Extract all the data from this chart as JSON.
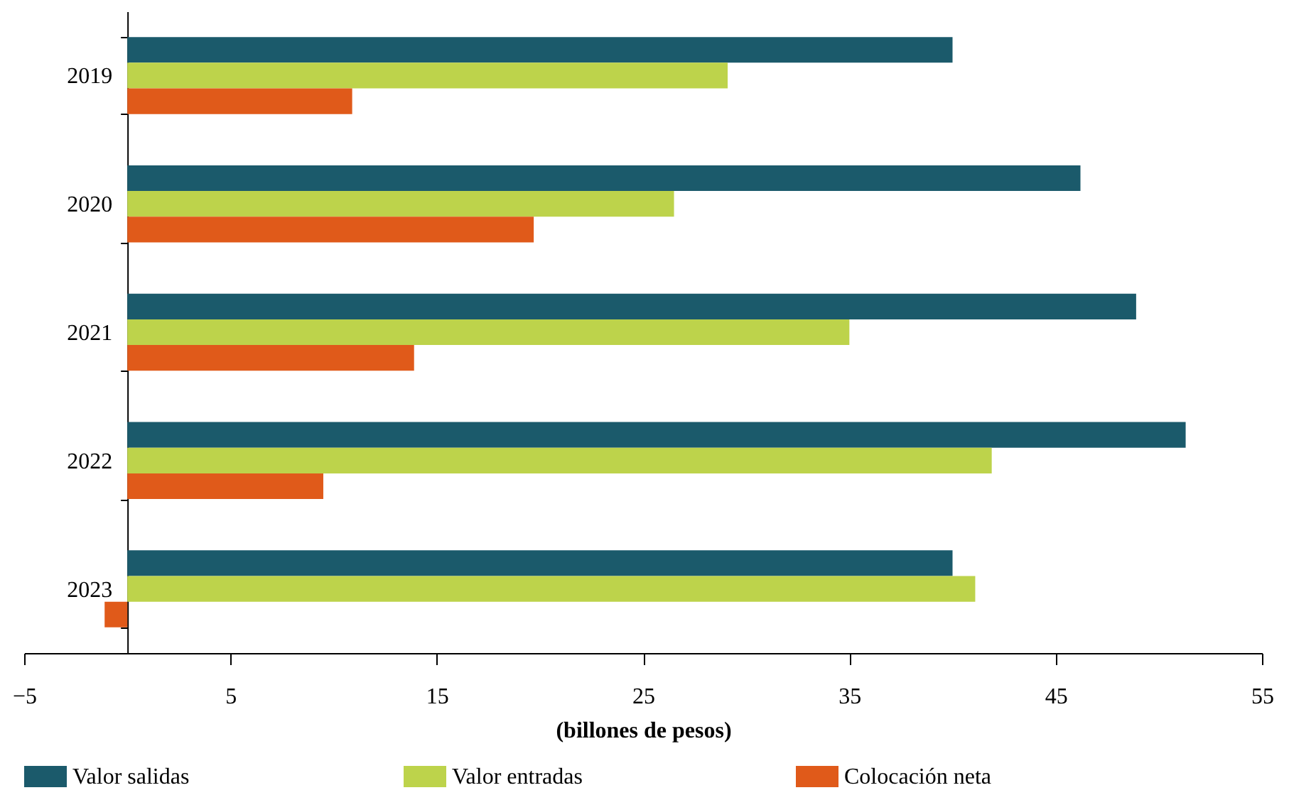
{
  "chart_data": {
    "type": "bar",
    "orientation": "horizontal",
    "xlabel": "(billones de pesos)",
    "categories": [
      "2019",
      "2020",
      "2021",
      "2022",
      "2023"
    ],
    "series": [
      {
        "name": "Valor salidas",
        "color": "#1b5a6b",
        "values": [
          40.0,
          46.2,
          48.9,
          51.3,
          40.0
        ]
      },
      {
        "name": "Valor entradas",
        "color": "#bdd34b",
        "values": [
          29.1,
          26.5,
          35.0,
          41.9,
          41.1
        ]
      },
      {
        "name": "Colocación neta",
        "color": "#e05a1a",
        "values": [
          10.9,
          19.7,
          13.9,
          9.5,
          -1.1
        ]
      }
    ],
    "xlim": [
      -5,
      55
    ],
    "xticks": [
      -5,
      5,
      15,
      25,
      35,
      45,
      55
    ],
    "legend": "bottom",
    "grid": false
  }
}
